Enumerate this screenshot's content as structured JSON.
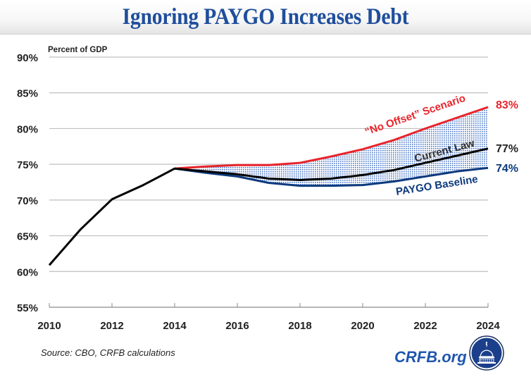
{
  "title": "Ignoring PAYGO Increases Debt",
  "source": "Source: CBO, CRFB calculations",
  "brand": "CRFB.org",
  "logo_icon": "capitol-dome-logo-icon",
  "colors": {
    "title": "#1f4e9c",
    "no_offset": "#e8242b",
    "current_law": "#000000",
    "paygo": "#0d3a7d",
    "fill_dots": "#4a78c8",
    "grid": "#bfbfbf",
    "brand": "#1f56b0"
  },
  "chart_data": {
    "type": "line",
    "title": "Ignoring PAYGO Increases Debt",
    "ylabel": "Percent of GDP",
    "xlabel": "",
    "ylim": [
      55,
      90
    ],
    "xlim": [
      2010,
      2024
    ],
    "yticks": [
      "55%",
      "60%",
      "65%",
      "70%",
      "75%",
      "80%",
      "85%",
      "90%"
    ],
    "ytick_values": [
      55,
      60,
      65,
      70,
      75,
      80,
      85,
      90
    ],
    "xticks": [
      "2010",
      "2012",
      "2014",
      "2016",
      "2018",
      "2020",
      "2022",
      "2024"
    ],
    "xtick_values": [
      2010,
      2012,
      2014,
      2016,
      2018,
      2020,
      2022,
      2024
    ],
    "grid": true,
    "shaded_region": "between \"No Offset\" Scenario and PAYGO Baseline (dotted blue fill)",
    "series": [
      {
        "name": "Historical / Current Law",
        "label": "Current Law",
        "end_label": "77%",
        "color": "#000000",
        "x": [
          2010,
          2011,
          2012,
          2013,
          2014,
          2015,
          2016,
          2017,
          2018,
          2019,
          2020,
          2021,
          2022,
          2023,
          2024
        ],
        "values": [
          60.9,
          65.9,
          70.1,
          72.1,
          74.4,
          74.0,
          73.6,
          73.0,
          72.8,
          73.0,
          73.5,
          74.2,
          75.2,
          76.2,
          77.2
        ]
      },
      {
        "name": "\"No Offset\" Scenario",
        "label": "“No Offset” Scenario",
        "end_label": "83%",
        "color": "#e8242b",
        "x": [
          2014,
          2015,
          2016,
          2017,
          2018,
          2019,
          2020,
          2021,
          2022,
          2023,
          2024
        ],
        "values": [
          74.4,
          74.7,
          74.9,
          74.9,
          75.2,
          76.1,
          77.1,
          78.4,
          80.0,
          81.5,
          83.0
        ]
      },
      {
        "name": "PAYGO Baseline",
        "label": "PAYGO Baseline",
        "end_label": "74%",
        "color": "#0d3a7d",
        "x": [
          2014,
          2015,
          2016,
          2017,
          2018,
          2019,
          2020,
          2021,
          2022,
          2023,
          2024
        ],
        "values": [
          74.4,
          73.8,
          73.3,
          72.4,
          72.0,
          72.0,
          72.1,
          72.6,
          73.3,
          74.0,
          74.5
        ]
      }
    ]
  }
}
